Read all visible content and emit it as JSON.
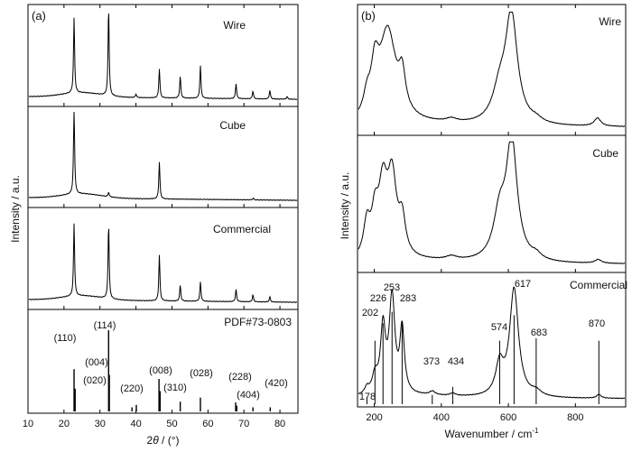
{
  "chart_data": [
    {
      "panel": "(a)",
      "type": "line",
      "xlabel_parts": [
        "2",
        "θ",
        " / (°)"
      ],
      "ylabel": "Intensity / a.u.",
      "xlim": [
        10,
        85
      ],
      "xticks": [
        10,
        20,
        30,
        40,
        50,
        60,
        70,
        80
      ],
      "ylim": [
        0,
        1
      ],
      "series": [
        {
          "name": "Wire",
          "peaks": [
            [
              22.8,
              0.85
            ],
            [
              32.4,
              1.0
            ],
            [
              40.0,
              0.04
            ],
            [
              46.5,
              0.33
            ],
            [
              52.3,
              0.25
            ],
            [
              57.9,
              0.37
            ],
            [
              67.8,
              0.17
            ],
            [
              72.5,
              0.09
            ],
            [
              77.2,
              0.1
            ],
            [
              82.0,
              0.03
            ]
          ]
        },
        {
          "name": "Cube",
          "peaks": [
            [
              22.8,
              1.0
            ],
            [
              32.4,
              0.05
            ],
            [
              46.5,
              0.42
            ],
            [
              72.6,
              0.02
            ]
          ]
        },
        {
          "name": "Commercial",
          "peaks": [
            [
              22.8,
              0.82
            ],
            [
              32.4,
              0.85
            ],
            [
              46.5,
              0.52
            ],
            [
              52.3,
              0.18
            ],
            [
              57.9,
              0.22
            ],
            [
              67.8,
              0.14
            ],
            [
              72.5,
              0.08
            ],
            [
              77.2,
              0.06
            ]
          ]
        }
      ],
      "reference": {
        "name": "PDF#73-0803",
        "lines": [
          [
            22.8,
            0.52
          ],
          [
            23.1,
            0.28
          ],
          [
            32.4,
            1.0
          ],
          [
            32.6,
            0.45
          ],
          [
            38.9,
            0.05
          ],
          [
            40.1,
            0.08
          ],
          [
            46.4,
            0.4
          ],
          [
            46.7,
            0.25
          ],
          [
            52.3,
            0.12
          ],
          [
            57.9,
            0.17
          ],
          [
            67.7,
            0.11
          ],
          [
            68.0,
            0.07
          ],
          [
            72.5,
            0.05
          ],
          [
            77.3,
            0.05
          ]
        ],
        "labels": [
          "(110)",
          "(004)",
          "(020)",
          "(114)",
          "(220)",
          "(008)",
          "(310)",
          "(028)",
          "(228)",
          "(404)",
          "(420)"
        ]
      }
    },
    {
      "panel": "(b)",
      "type": "line",
      "xlabel_parts": [
        "Wavenumber / cm",
        "-1"
      ],
      "ylabel": "Intensity / a.u.",
      "xlim": [
        150,
        950
      ],
      "xticks": [
        200,
        400,
        600,
        800
      ],
      "ylim": [
        0,
        1
      ],
      "series": [
        {
          "name": "Wire",
          "peaks": [
            [
              178,
              0.15,
              12
            ],
            [
              202,
              0.38,
              14
            ],
            [
              240,
              0.78,
              30
            ],
            [
              283,
              0.3,
              12
            ],
            [
              430,
              0.03,
              20
            ],
            [
              574,
              0.25,
              25
            ],
            [
              609,
              0.93,
              22
            ],
            [
              683,
              0.03,
              20
            ],
            [
              866,
              0.07,
              12
            ]
          ]
        },
        {
          "name": "Cube",
          "peaks": [
            [
              178,
              0.27,
              12
            ],
            [
              202,
              0.3,
              12
            ],
            [
              226,
              0.55,
              16
            ],
            [
              253,
              0.62,
              16
            ],
            [
              283,
              0.28,
              12
            ],
            [
              430,
              0.03,
              20
            ],
            [
              574,
              0.35,
              22
            ],
            [
              610,
              0.96,
              20
            ],
            [
              683,
              0.04,
              18
            ],
            [
              868,
              0.03,
              12
            ]
          ]
        },
        {
          "name": "Commercial",
          "peaks": [
            [
              178,
              0.05,
              8
            ],
            [
              202,
              0.14,
              10
            ],
            [
              226,
              0.53,
              9
            ],
            [
              253,
              0.78,
              10
            ],
            [
              283,
              0.52,
              8
            ],
            [
              373,
              0.03,
              10
            ],
            [
              434,
              0.02,
              10
            ],
            [
              574,
              0.25,
              14
            ],
            [
              617,
              0.88,
              16
            ],
            [
              683,
              0.04,
              18
            ],
            [
              870,
              0.03,
              8
            ]
          ]
        }
      ],
      "reference": {
        "name": "Commercial",
        "lines": [
          [
            178,
            0.06
          ],
          [
            202,
            0.55
          ],
          [
            226,
            0.7
          ],
          [
            253,
            0.8
          ],
          [
            283,
            0.7
          ],
          [
            373,
            0.08
          ],
          [
            434,
            0.15
          ],
          [
            574,
            0.55
          ],
          [
            617,
            0.77
          ],
          [
            683,
            0.57
          ],
          [
            870,
            0.55
          ]
        ],
        "labels": [
          "178",
          "202",
          "226",
          "253",
          "283",
          "373",
          "434",
          "574",
          "617",
          "683",
          "870"
        ]
      }
    }
  ]
}
